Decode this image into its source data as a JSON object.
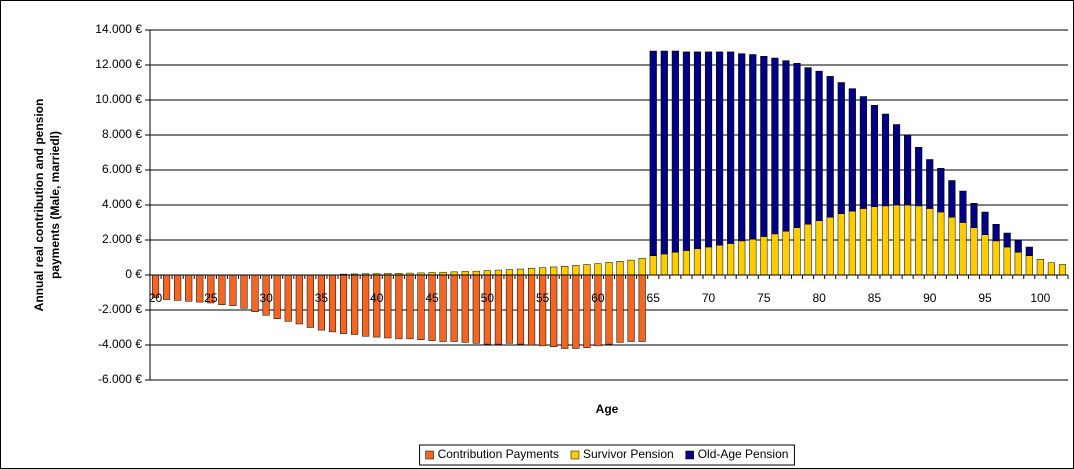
{
  "chart_data": {
    "type": "stacked_bar",
    "ylabel": [
      "Annual real contribution and pension",
      "payments (Male, marriedl)"
    ],
    "xlabel": "Age",
    "categories": [
      "20",
      null,
      null,
      null,
      null,
      "25",
      null,
      null,
      null,
      null,
      "30",
      null,
      null,
      null,
      null,
      "35",
      null,
      null,
      null,
      null,
      "40",
      null,
      null,
      null,
      null,
      "45",
      null,
      null,
      null,
      null,
      "50",
      null,
      null,
      null,
      null,
      "55",
      null,
      null,
      null,
      null,
      "60",
      null,
      null,
      null,
      null,
      "65",
      null,
      null,
      null,
      null,
      "70",
      null,
      null,
      null,
      null,
      "75",
      null,
      null,
      null,
      null,
      "80",
      null,
      null,
      null,
      null,
      "85",
      null,
      null,
      null,
      null,
      "90",
      null,
      null,
      null,
      null,
      "95",
      null,
      null,
      null,
      null,
      "100",
      null,
      null
    ],
    "series": [
      {
        "name": "Contribution Payments",
        "color": "#f26522",
        "values": [
          -1300,
          -1400,
          -1450,
          -1500,
          -1550,
          -1600,
          -1700,
          -1750,
          -1900,
          -2100,
          -2300,
          -2500,
          -2650,
          -2800,
          -3000,
          -3150,
          -3250,
          -3350,
          -3400,
          -3500,
          -3550,
          -3600,
          -3650,
          -3650,
          -3700,
          -3750,
          -3800,
          -3800,
          -3850,
          -3900,
          -3950,
          -3950,
          -3900,
          -3950,
          -4000,
          -4050,
          -4100,
          -4200,
          -4200,
          -4150,
          -4050,
          -3950,
          -3850,
          -3800,
          -3800,
          0,
          0,
          0,
          0,
          0,
          0,
          0,
          0,
          0,
          0,
          0,
          0,
          0,
          0,
          0,
          0,
          0,
          0,
          0,
          0,
          0,
          0,
          0,
          0,
          0,
          0,
          0,
          0,
          0,
          0,
          0,
          0,
          0,
          0,
          0,
          0,
          0,
          0
        ]
      },
      {
        "name": "Survivor Pension",
        "color": "#ffcc00",
        "values": [
          0,
          0,
          0,
          0,
          0,
          0,
          0,
          0,
          0,
          0,
          0,
          0,
          0,
          0,
          0,
          0,
          0,
          50,
          60,
          70,
          80,
          90,
          100,
          110,
          120,
          140,
          160,
          180,
          200,
          220,
          250,
          280,
          310,
          340,
          380,
          420,
          460,
          500,
          550,
          600,
          650,
          720,
          780,
          850,
          950,
          1100,
          1200,
          1300,
          1400,
          1500,
          1600,
          1700,
          1800,
          1950,
          2050,
          2200,
          2350,
          2500,
          2700,
          2900,
          3100,
          3300,
          3500,
          3650,
          3800,
          3900,
          3950,
          4000,
          4000,
          3950,
          3800,
          3600,
          3300,
          3000,
          2700,
          2300,
          1950,
          1600,
          1300,
          1100,
          900,
          700,
          600
        ]
      },
      {
        "name": "Old-Age Pension",
        "color": "#000080",
        "values": [
          0,
          0,
          0,
          0,
          0,
          0,
          0,
          0,
          0,
          0,
          0,
          0,
          0,
          0,
          0,
          0,
          0,
          0,
          0,
          0,
          0,
          0,
          0,
          0,
          0,
          0,
          0,
          0,
          0,
          0,
          0,
          0,
          0,
          0,
          0,
          0,
          0,
          0,
          0,
          0,
          0,
          0,
          0,
          0,
          0,
          11700,
          11600,
          11500,
          11350,
          11250,
          11150,
          11050,
          10950,
          10700,
          10550,
          10300,
          10050,
          9750,
          9400,
          8950,
          8550,
          8050,
          7500,
          7000,
          6400,
          5800,
          5250,
          4600,
          4000,
          3350,
          2800,
          2500,
          2100,
          1800,
          1400,
          1300,
          950,
          800,
          700,
          500,
          0,
          0,
          0
        ]
      }
    ],
    "ylim": [
      -6000,
      14000
    ],
    "yticks": [
      {
        "value": -6000,
        "label": "-6.000 €"
      },
      {
        "value": -4000,
        "label": "-4.000 €"
      },
      {
        "value": -2000,
        "label": "-2.000 €"
      },
      {
        "value": 0,
        "label": "0 €"
      },
      {
        "value": 2000,
        "label": "2.000 €"
      },
      {
        "value": 4000,
        "label": "4.000 €"
      },
      {
        "value": 6000,
        "label": "6.000 €"
      },
      {
        "value": 8000,
        "label": "8.000 €"
      },
      {
        "value": 10000,
        "label": "10.000 €"
      },
      {
        "value": 12000,
        "label": "12.000 €"
      },
      {
        "value": 14000,
        "label": "14.000 €"
      }
    ],
    "grid": true,
    "legend": "bottom"
  }
}
